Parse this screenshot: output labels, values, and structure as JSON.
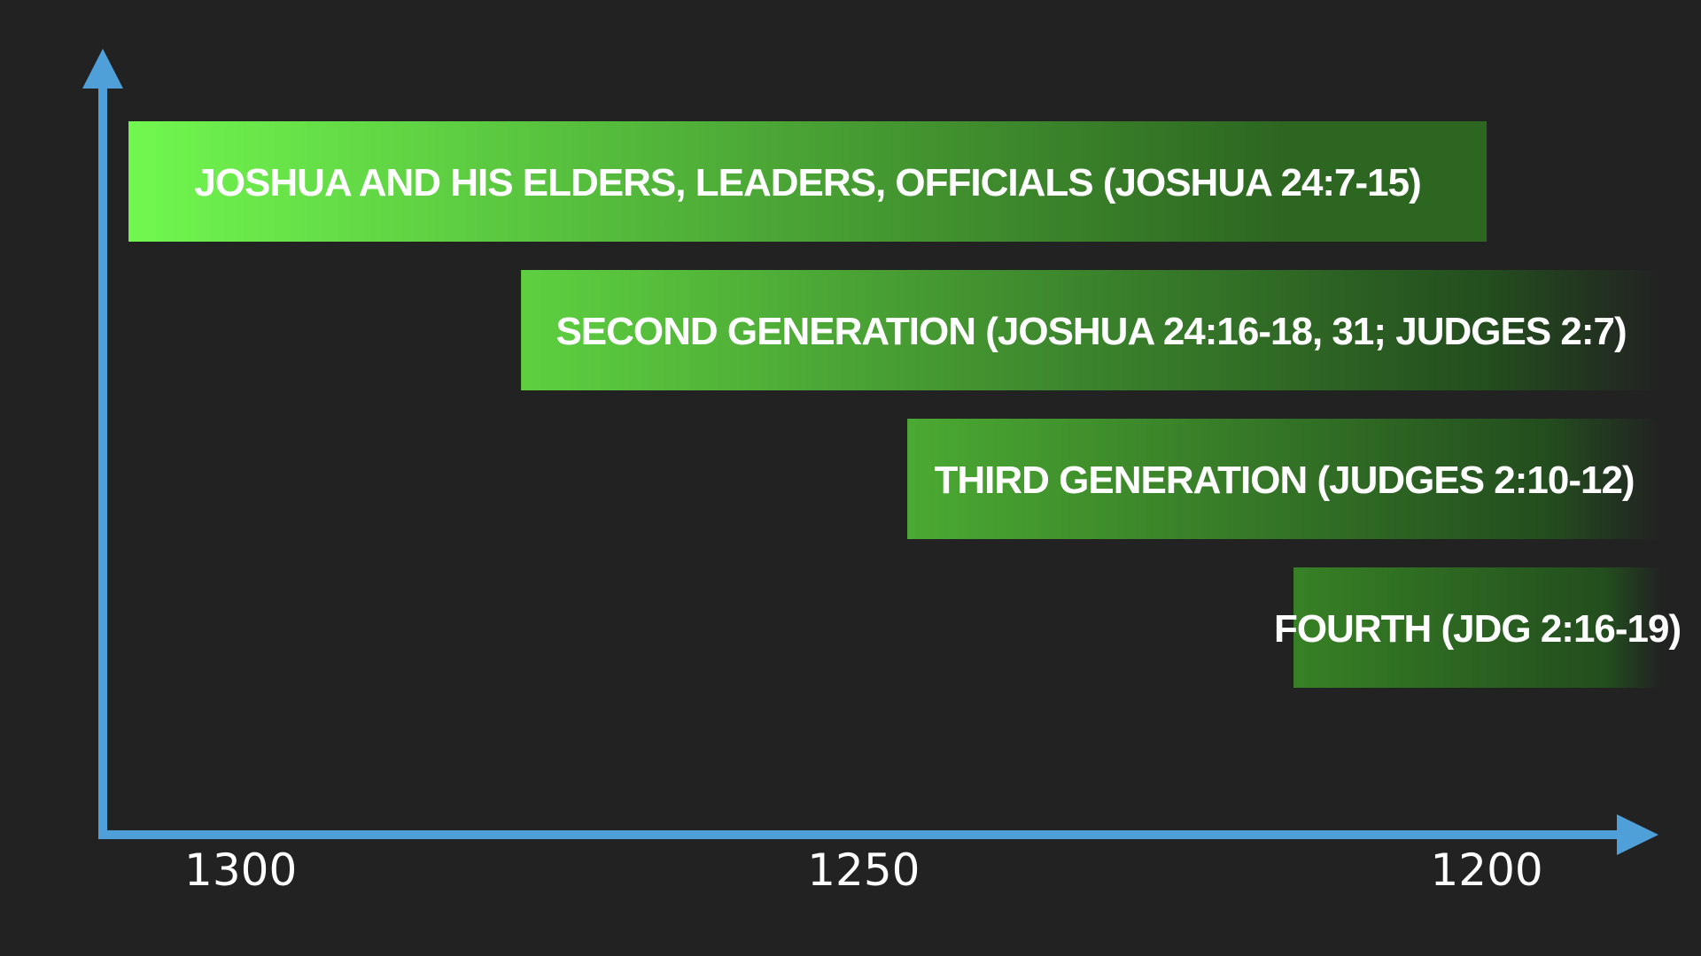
{
  "chart_data": {
    "type": "bar",
    "orientation": "horizontal-timeline",
    "x_axis_reversed": true,
    "xlim": [
      1310,
      1186
    ],
    "x_ticks": [
      {
        "value": 1300,
        "label": "1300"
      },
      {
        "value": 1250,
        "label": "1250"
      },
      {
        "value": 1200,
        "label": "1200"
      }
    ],
    "bars": [
      {
        "label": "JOSHUA AND HIS ELDERS, LEADERS, OFFICIALS (JOSHUA 24:7-15)",
        "start": 1309,
        "end": 1200,
        "fade_out": false
      },
      {
        "label": "SECOND GENERATION (JOSHUA 24:16-18, 31; JUDGES 2:7)",
        "start": 1277.5,
        "end": 1186,
        "fade_out": true
      },
      {
        "label": "THIRD GENERATION (JUDGES 2:10-12)",
        "start": 1246.5,
        "end": 1186,
        "fade_out": true
      },
      {
        "label": "FOURTH (JDG 2:16-19)",
        "start": 1215.5,
        "end": 1186,
        "fade_out": true
      }
    ],
    "colors": {
      "background": "#222222",
      "axis": "#4f9fd9",
      "bar_bright": "#72f84f",
      "bar_mid": "#3b8a26",
      "bar_dark": "#234d1e",
      "label_text": "#ffffff"
    },
    "grid": false,
    "legend": "none"
  }
}
